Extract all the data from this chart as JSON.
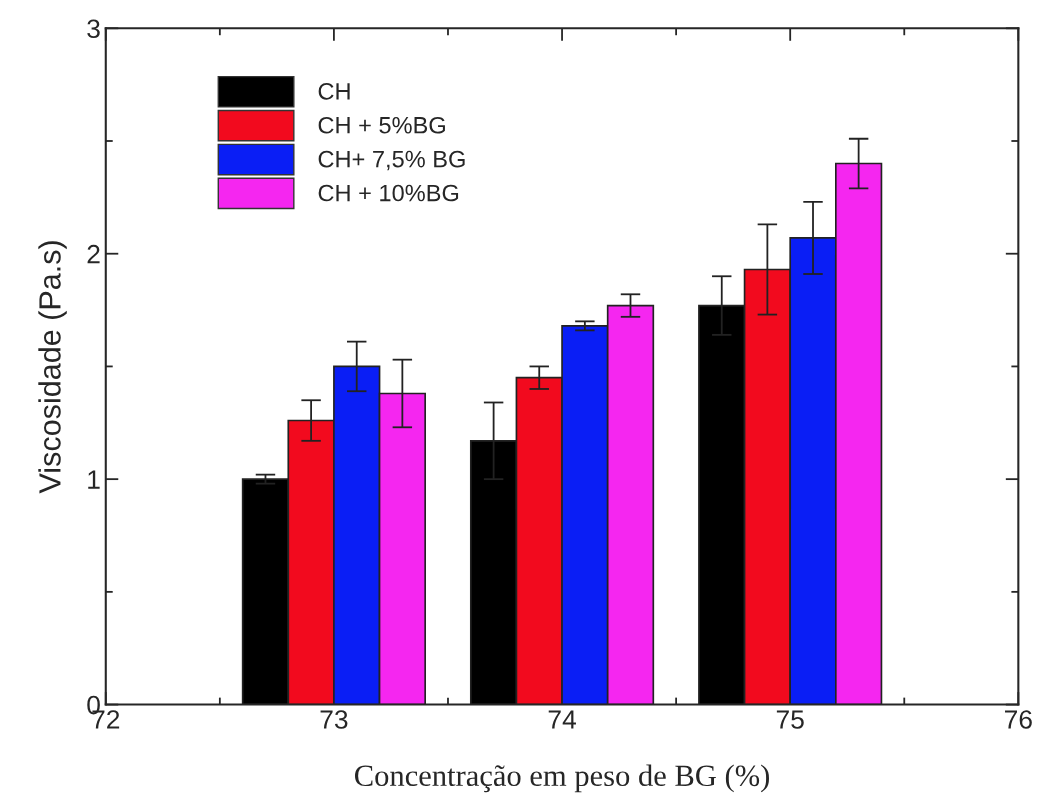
{
  "chart_data": {
    "type": "bar",
    "xlabel": "Concentração em peso de BG (%)",
    "ylabel": "Viscosidade (Pa.s)",
    "xlim": [
      72,
      76
    ],
    "xticks": [
      72,
      73,
      74,
      75,
      76
    ],
    "ylim": [
      0,
      3
    ],
    "yticks": [
      0,
      1,
      2,
      3
    ],
    "grid": false,
    "legend": "top left",
    "series": [
      {
        "name": "CH",
        "color": "#000000",
        "x": [
          72.7,
          73.7,
          74.7
        ],
        "values": [
          1.0,
          1.17,
          1.77
        ],
        "errors": [
          0.02,
          0.17,
          0.13
        ]
      },
      {
        "name": "CH + 5%BG",
        "color": "#f20a1e",
        "x": [
          72.9,
          73.9,
          74.9
        ],
        "values": [
          1.26,
          1.45,
          1.93
        ],
        "errors": [
          0.09,
          0.05,
          0.2
        ]
      },
      {
        "name": "CH+ 7,5% BG",
        "color": "#0a1ef5",
        "x": [
          73.1,
          74.1,
          75.1
        ],
        "values": [
          1.5,
          1.68,
          2.07
        ],
        "errors": [
          0.11,
          0.02,
          0.16
        ]
      },
      {
        "name": "CH + 10%BG",
        "color": "#f526f0",
        "x": [
          73.3,
          74.3,
          75.3
        ],
        "values": [
          1.38,
          1.77,
          2.4
        ],
        "errors": [
          0.15,
          0.05,
          0.11
        ]
      }
    ]
  }
}
